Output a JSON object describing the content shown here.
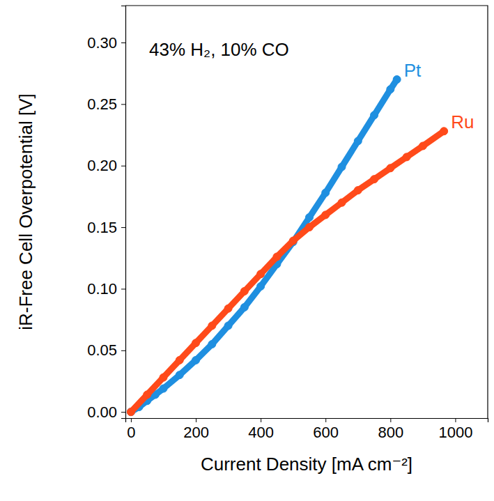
{
  "chart_data": {
    "type": "line",
    "annotation": "43% H₂, 10% CO",
    "x_label": "Current Density [mA cm⁻²]",
    "y_label": "iR-Free Cell Overpotential [V]",
    "xlim": [
      -17,
      1100
    ],
    "ylim": [
      -0.005,
      0.33
    ],
    "xticks": [
      0,
      200,
      400,
      600,
      800,
      1000
    ],
    "yticks": [
      {
        "value": 0,
        "label": "0.00"
      },
      {
        "value": 0.05,
        "label": "0.05"
      },
      {
        "value": 0.1,
        "label": "0.10"
      },
      {
        "value": 0.15,
        "label": "0.15"
      },
      {
        "value": 0.2,
        "label": "0.20"
      },
      {
        "value": 0.25,
        "label": "0.25"
      },
      {
        "value": 0.3,
        "label": "0.30"
      }
    ],
    "grid": false,
    "marker": "circle",
    "series": [
      {
        "name": "Pt",
        "color": "#1f8fe0",
        "x": [
          0,
          25,
          50,
          75,
          100,
          150,
          200,
          250,
          300,
          350,
          400,
          450,
          500,
          550,
          600,
          650,
          700,
          750,
          800,
          820
        ],
        "values": [
          0,
          0.004,
          0.009,
          0.014,
          0.019,
          0.03,
          0.042,
          0.055,
          0.07,
          0.085,
          0.102,
          0.12,
          0.138,
          0.158,
          0.178,
          0.199,
          0.22,
          0.241,
          0.262,
          0.27
        ]
      },
      {
        "name": "Ru",
        "color": "#ff4a1a",
        "x": [
          0,
          50,
          100,
          150,
          200,
          250,
          300,
          350,
          400,
          450,
          500,
          550,
          600,
          650,
          700,
          750,
          800,
          850,
          900,
          965
        ],
        "values": [
          0,
          0.014,
          0.028,
          0.042,
          0.056,
          0.07,
          0.084,
          0.098,
          0.112,
          0.126,
          0.139,
          0.15,
          0.16,
          0.17,
          0.18,
          0.189,
          0.198,
          0.207,
          0.216,
          0.228
        ]
      }
    ]
  }
}
